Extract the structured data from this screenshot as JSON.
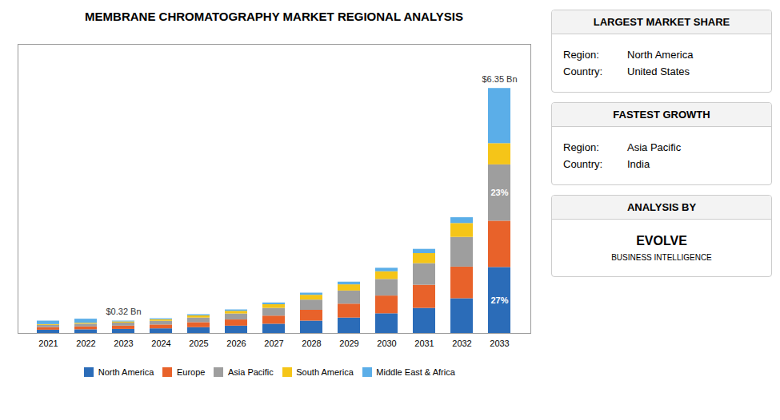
{
  "chart_data": {
    "type": "bar",
    "stacked": true,
    "title": "MEMBRANE CHROMATOGRAPHY MARKET REGIONAL ANALYSIS",
    "categories": [
      "2021",
      "2022",
      "2023",
      "2024",
      "2025",
      "2026",
      "2027",
      "2028",
      "2029",
      "2030",
      "2031",
      "2032",
      "2033"
    ],
    "series": [
      {
        "name": "North America",
        "color": "#2B6CB8",
        "values": [
          0.085,
          0.095,
          0.105,
          0.12,
          0.15,
          0.19,
          0.24,
          0.32,
          0.4,
          0.51,
          0.65,
          0.9,
          1.71
        ]
      },
      {
        "name": "Europe",
        "color": "#E8622A",
        "values": [
          0.065,
          0.075,
          0.085,
          0.1,
          0.13,
          0.16,
          0.21,
          0.28,
          0.36,
          0.46,
          0.6,
          0.82,
          1.2
        ]
      },
      {
        "name": "Asia Pacific",
        "color": "#9E9E9E",
        "values": [
          0.06,
          0.07,
          0.08,
          0.095,
          0.12,
          0.155,
          0.2,
          0.265,
          0.34,
          0.43,
          0.56,
          0.77,
          1.46
        ]
      },
      {
        "name": "South America",
        "color": "#F5C518",
        "values": [
          0.02,
          0.025,
          0.03,
          0.04,
          0.055,
          0.07,
          0.095,
          0.125,
          0.16,
          0.2,
          0.26,
          0.36,
          0.55
        ]
      },
      {
        "name": "Middle East & Africa",
        "color": "#5BAEE8",
        "values": [
          0.09,
          0.105,
          0.02,
          0.025,
          0.03,
          0.035,
          0.045,
          0.055,
          0.07,
          0.09,
          0.11,
          0.15,
          1.43
        ]
      }
    ],
    "ylim": [
      0,
      7.493
    ],
    "yticks": [],
    "tick_labels": "x",
    "grid": false,
    "legend": "bottom",
    "annotations": [
      {
        "text": "$0.32 Bn",
        "category": "2023"
      },
      {
        "text": "$6.35 Bn",
        "category": "2033"
      },
      {
        "text": "27%",
        "category": "2033",
        "series": "North America"
      },
      {
        "text": "23%",
        "category": "2033",
        "series": "Asia Pacific"
      }
    ],
    "panels": [
      {
        "title": "LARGEST MARKET SHARE",
        "rows": [
          {
            "label": "Region:",
            "value": "North America"
          },
          {
            "label": "Country:",
            "value": "United States"
          }
        ]
      },
      {
        "title": "FASTEST GROWTH",
        "rows": [
          {
            "label": "Region:",
            "value": "Asia Pacific"
          },
          {
            "label": "Country:",
            "value": "India"
          }
        ]
      },
      {
        "title": "ANALYSIS BY",
        "lines": [
          "EVOLVE",
          "BUSINESS INTELLIGENCE"
        ]
      }
    ]
  }
}
